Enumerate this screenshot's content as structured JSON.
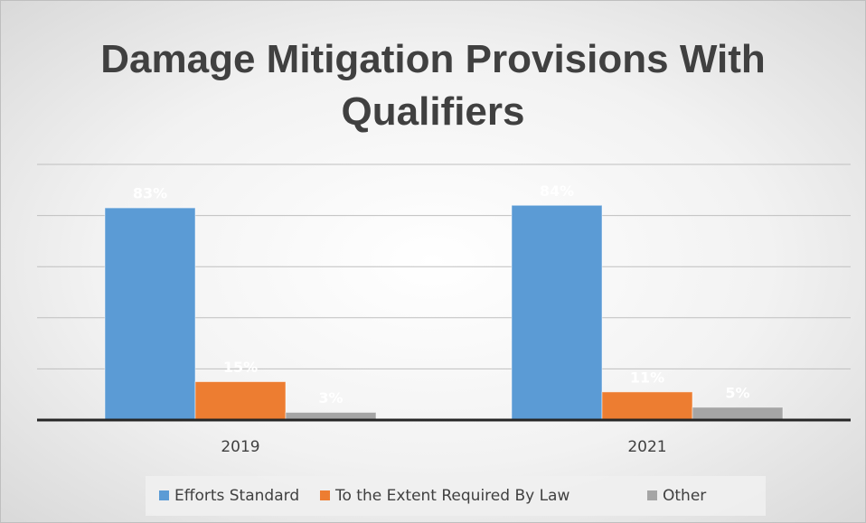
{
  "chart_data": {
    "type": "bar",
    "title": "Damage Mitigation Provisions With Qualifiers",
    "categories": [
      "2019",
      "2021"
    ],
    "series": [
      {
        "name": "Efforts Standard",
        "color": "#5b9bd5",
        "values": [
          83,
          84
        ],
        "value_labels": [
          "83%",
          "84%"
        ]
      },
      {
        "name": "To the Extent Required By Law",
        "color": "#ed7d31",
        "values": [
          15,
          11
        ],
        "value_labels": [
          "15%",
          "11%"
        ]
      },
      {
        "name": "Other",
        "color": "#a5a5a5",
        "values": [
          3,
          5
        ],
        "value_labels": [
          "3%",
          "5%"
        ]
      }
    ],
    "ylim": [
      0,
      100
    ],
    "yticks": [
      0,
      20,
      40,
      60,
      80,
      100
    ],
    "grid": true,
    "legend": "bottom"
  }
}
